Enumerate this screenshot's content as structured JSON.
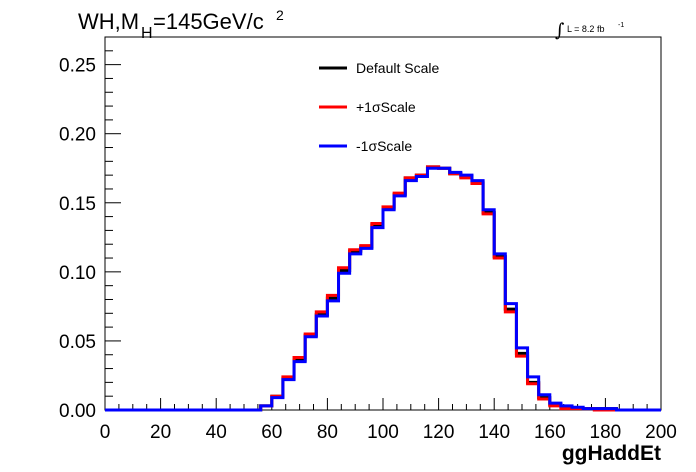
{
  "chart_data": {
    "type": "line",
    "title": {
      "main": "WH,M",
      "sub": "H",
      "rest": "=145GeV/c",
      "sup": "2"
    },
    "lumi": {
      "symbol": "∫",
      "text": "L = 8.2 fb",
      "sup": "-1"
    },
    "xlabel": "ggHaddEt",
    "ylabel": "",
    "xlim": [
      0,
      200
    ],
    "ylim": [
      0,
      0.27
    ],
    "xticks": [
      "0",
      "20",
      "40",
      "60",
      "80",
      "100",
      "120",
      "140",
      "160",
      "180",
      "200"
    ],
    "yticks": [
      "0.00",
      "0.05",
      "0.10",
      "0.15",
      "0.20",
      "0.25"
    ],
    "bin_width": 4,
    "bin_edges_start": 0,
    "legend_position": "top-center",
    "series": [
      {
        "name": "Default Scale",
        "color": "#000000",
        "values": [
          0,
          0,
          0,
          0,
          0,
          0,
          0,
          0,
          0,
          0,
          0,
          0,
          0,
          0,
          0.003,
          0.01,
          0.023,
          0.036,
          0.054,
          0.069,
          0.081,
          0.101,
          0.115,
          0.118,
          0.134,
          0.146,
          0.156,
          0.168,
          0.17,
          0.176,
          0.175,
          0.171,
          0.169,
          0.165,
          0.143,
          0.111,
          0.073,
          0.041,
          0.02,
          0.009,
          0.004,
          0.002,
          0.001,
          0.001,
          0.001,
          0.001,
          0,
          0,
          0,
          0
        ]
      },
      {
        "name": "+1σScale",
        "color": "#ff0000",
        "values": [
          0,
          0,
          0,
          0,
          0,
          0,
          0,
          0,
          0,
          0,
          0,
          0,
          0,
          0,
          0.003,
          0.01,
          0.024,
          0.038,
          0.055,
          0.071,
          0.083,
          0.103,
          0.116,
          0.119,
          0.135,
          0.147,
          0.157,
          0.168,
          0.17,
          0.176,
          0.175,
          0.171,
          0.168,
          0.164,
          0.142,
          0.11,
          0.071,
          0.039,
          0.019,
          0.008,
          0.003,
          0.001,
          0.001,
          0.001,
          0,
          0,
          0,
          0,
          0,
          0
        ]
      },
      {
        "name": "-1σScale",
        "color": "#0000ff",
        "values": [
          0,
          0,
          0,
          0,
          0,
          0,
          0,
          0,
          0,
          0,
          0,
          0,
          0,
          0,
          0.003,
          0.009,
          0.022,
          0.035,
          0.053,
          0.068,
          0.079,
          0.099,
          0.113,
          0.117,
          0.132,
          0.145,
          0.155,
          0.166,
          0.169,
          0.175,
          0.175,
          0.172,
          0.17,
          0.166,
          0.145,
          0.113,
          0.077,
          0.045,
          0.024,
          0.011,
          0.005,
          0.003,
          0.002,
          0.001,
          0.001,
          0.001,
          0,
          0,
          0,
          0
        ]
      }
    ]
  }
}
